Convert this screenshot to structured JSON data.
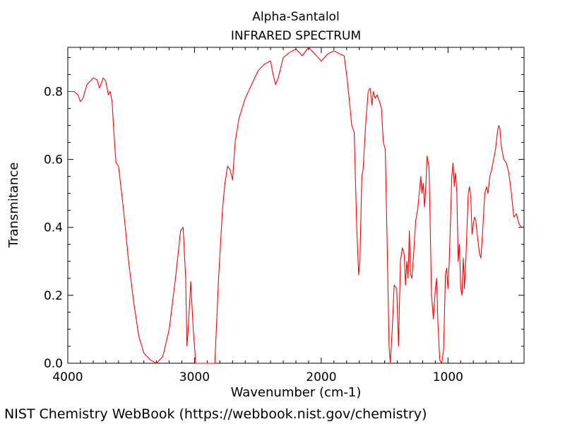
{
  "chart_data": {
    "type": "line",
    "title": "Alpha-Santalol",
    "subtitle": "INFRARED SPECTRUM",
    "xlabel": "Wavenumber (cm-1)",
    "ylabel": "Transmitance",
    "xlim": [
      4000,
      400
    ],
    "ylim": [
      0.0,
      0.93
    ],
    "x_reversed": true,
    "xticks": [
      4000,
      3000,
      2000,
      1000
    ],
    "xtick_labels": [
      "4000",
      "3000",
      "2000",
      "1000"
    ],
    "yticks": [
      0.0,
      0.2,
      0.4,
      0.6,
      0.8
    ],
    "ytick_labels": [
      "0.0",
      "0.2",
      "0.4",
      "0.6",
      "0.8"
    ],
    "grid": false,
    "legend": "none",
    "series": [
      {
        "color": "#ff0000",
        "points": [
          [
            3995,
            0.8
          ],
          [
            3950,
            0.8
          ],
          [
            3920,
            0.79
          ],
          [
            3900,
            0.77
          ],
          [
            3880,
            0.78
          ],
          [
            3850,
            0.82
          ],
          [
            3800,
            0.84
          ],
          [
            3770,
            0.835
          ],
          [
            3750,
            0.81
          ],
          [
            3720,
            0.84
          ],
          [
            3700,
            0.83
          ],
          [
            3680,
            0.79
          ],
          [
            3665,
            0.8
          ],
          [
            3650,
            0.77
          ],
          [
            3640,
            0.7
          ],
          [
            3620,
            0.59
          ],
          [
            3600,
            0.58
          ],
          [
            3560,
            0.45
          ],
          [
            3520,
            0.3
          ],
          [
            3480,
            0.18
          ],
          [
            3440,
            0.08
          ],
          [
            3400,
            0.03
          ],
          [
            3350,
            0.01
          ],
          [
            3300,
            0.0
          ],
          [
            3250,
            0.02
          ],
          [
            3200,
            0.1
          ],
          [
            3150,
            0.25
          ],
          [
            3110,
            0.39
          ],
          [
            3090,
            0.4
          ],
          [
            3070,
            0.25
          ],
          [
            3060,
            0.05
          ],
          [
            3050,
            0.1
          ],
          [
            3030,
            0.24
          ],
          [
            3010,
            0.1
          ],
          [
            2990,
            0.0
          ],
          [
            2980,
            0.0
          ],
          [
            2870,
            0.0
          ],
          [
            2840,
            0.0
          ],
          [
            2810,
            0.25
          ],
          [
            2780,
            0.45
          ],
          [
            2760,
            0.53
          ],
          [
            2740,
            0.58
          ],
          [
            2720,
            0.57
          ],
          [
            2700,
            0.54
          ],
          [
            2680,
            0.65
          ],
          [
            2650,
            0.72
          ],
          [
            2600,
            0.78
          ],
          [
            2550,
            0.82
          ],
          [
            2500,
            0.86
          ],
          [
            2450,
            0.88
          ],
          [
            2400,
            0.89
          ],
          [
            2380,
            0.85
          ],
          [
            2360,
            0.82
          ],
          [
            2340,
            0.84
          ],
          [
            2300,
            0.9
          ],
          [
            2250,
            0.915
          ],
          [
            2200,
            0.925
          ],
          [
            2150,
            0.905
          ],
          [
            2100,
            0.93
          ],
          [
            2050,
            0.91
          ],
          [
            2000,
            0.89
          ],
          [
            1950,
            0.91
          ],
          [
            1900,
            0.92
          ],
          [
            1850,
            0.91
          ],
          [
            1820,
            0.905
          ],
          [
            1800,
            0.85
          ],
          [
            1780,
            0.78
          ],
          [
            1760,
            0.7
          ],
          [
            1740,
            0.68
          ],
          [
            1720,
            0.4
          ],
          [
            1705,
            0.26
          ],
          [
            1695,
            0.3
          ],
          [
            1680,
            0.55
          ],
          [
            1670,
            0.57
          ],
          [
            1650,
            0.7
          ],
          [
            1630,
            0.8
          ],
          [
            1615,
            0.81
          ],
          [
            1600,
            0.76
          ],
          [
            1590,
            0.8
          ],
          [
            1575,
            0.78
          ],
          [
            1560,
            0.79
          ],
          [
            1540,
            0.77
          ],
          [
            1525,
            0.75
          ],
          [
            1510,
            0.65
          ],
          [
            1495,
            0.63
          ],
          [
            1480,
            0.35
          ],
          [
            1465,
            0.05
          ],
          [
            1455,
            0.0
          ],
          [
            1440,
            0.1
          ],
          [
            1425,
            0.23
          ],
          [
            1405,
            0.22
          ],
          [
            1390,
            0.05
          ],
          [
            1375,
            0.3
          ],
          [
            1360,
            0.34
          ],
          [
            1345,
            0.32
          ],
          [
            1335,
            0.23
          ],
          [
            1325,
            0.3
          ],
          [
            1315,
            0.25
          ],
          [
            1305,
            0.39
          ],
          [
            1295,
            0.26
          ],
          [
            1285,
            0.25
          ],
          [
            1270,
            0.33
          ],
          [
            1255,
            0.42
          ],
          [
            1240,
            0.45
          ],
          [
            1225,
            0.51
          ],
          [
            1215,
            0.55
          ],
          [
            1205,
            0.5
          ],
          [
            1195,
            0.53
          ],
          [
            1185,
            0.46
          ],
          [
            1175,
            0.52
          ],
          [
            1165,
            0.61
          ],
          [
            1150,
            0.58
          ],
          [
            1140,
            0.4
          ],
          [
            1130,
            0.2
          ],
          [
            1115,
            0.13
          ],
          [
            1100,
            0.22
          ],
          [
            1090,
            0.25
          ],
          [
            1080,
            0.12
          ],
          [
            1065,
            0.01
          ],
          [
            1050,
            0.0
          ],
          [
            1035,
            0.04
          ],
          [
            1020,
            0.26
          ],
          [
            1010,
            0.28
          ],
          [
            1000,
            0.22
          ],
          [
            990,
            0.3
          ],
          [
            980,
            0.42
          ],
          [
            970,
            0.55
          ],
          [
            960,
            0.59
          ],
          [
            950,
            0.52
          ],
          [
            940,
            0.56
          ],
          [
            930,
            0.5
          ],
          [
            920,
            0.3
          ],
          [
            910,
            0.35
          ],
          [
            900,
            0.22
          ],
          [
            890,
            0.2
          ],
          [
            880,
            0.31
          ],
          [
            870,
            0.22
          ],
          [
            860,
            0.3
          ],
          [
            850,
            0.4
          ],
          [
            840,
            0.5
          ],
          [
            830,
            0.52
          ],
          [
            820,
            0.49
          ],
          [
            810,
            0.38
          ],
          [
            800,
            0.41
          ],
          [
            790,
            0.43
          ],
          [
            780,
            0.42
          ],
          [
            770,
            0.38
          ],
          [
            760,
            0.35
          ],
          [
            750,
            0.32
          ],
          [
            740,
            0.31
          ],
          [
            725,
            0.4
          ],
          [
            710,
            0.5
          ],
          [
            695,
            0.52
          ],
          [
            685,
            0.5
          ],
          [
            670,
            0.55
          ],
          [
            655,
            0.57
          ],
          [
            640,
            0.6
          ],
          [
            625,
            0.63
          ],
          [
            610,
            0.68
          ],
          [
            600,
            0.7
          ],
          [
            590,
            0.69
          ],
          [
            580,
            0.64
          ],
          [
            560,
            0.6
          ],
          [
            540,
            0.59
          ],
          [
            520,
            0.56
          ],
          [
            500,
            0.5
          ],
          [
            480,
            0.43
          ],
          [
            460,
            0.44
          ],
          [
            440,
            0.41
          ],
          [
            420,
            0.4
          ]
        ]
      }
    ]
  },
  "footer": {
    "credit": "NIST Chemistry WebBook (https://webbook.nist.gov/chemistry)"
  }
}
